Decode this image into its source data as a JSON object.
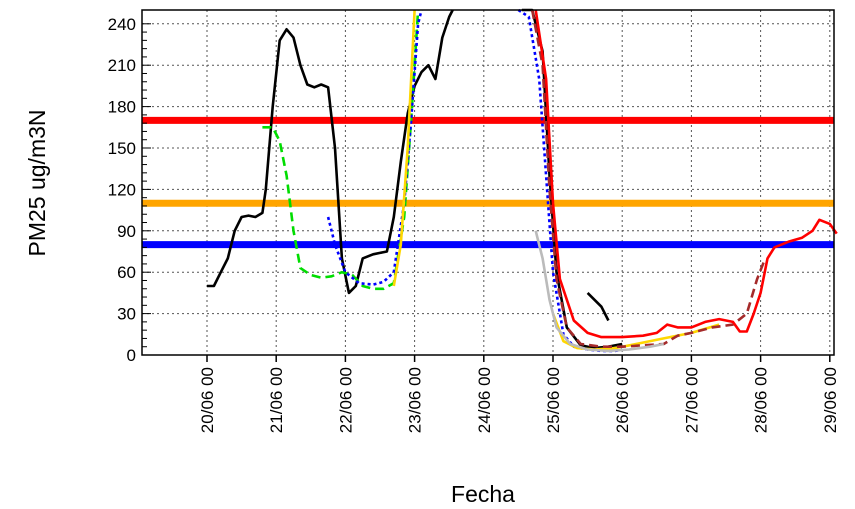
{
  "chart_data": {
    "type": "line",
    "xlabel": "Fecha",
    "ylabel": "PM25 ug/m3N",
    "ylim": [
      0,
      250
    ],
    "xlim": [
      0,
      9.1
    ],
    "grid": true,
    "y_ticks": [
      0,
      30,
      60,
      90,
      120,
      150,
      180,
      210,
      240
    ],
    "x_ticks": [
      {
        "x": 0,
        "label": "20/06 00"
      },
      {
        "x": 1,
        "label": "21/06 00"
      },
      {
        "x": 2,
        "label": "22/06 00"
      },
      {
        "x": 3,
        "label": "23/06 00"
      },
      {
        "x": 4,
        "label": "24/06 00"
      },
      {
        "x": 5,
        "label": "25/06 00"
      },
      {
        "x": 6,
        "label": "26/06 00"
      },
      {
        "x": 7,
        "label": "27/06 00"
      },
      {
        "x": 8,
        "label": "28/06 00"
      },
      {
        "x": 9,
        "label": "29/06 00"
      }
    ],
    "thresholds": [
      {
        "value": 170,
        "color": "#ff0000"
      },
      {
        "value": 110,
        "color": "#ffa500"
      },
      {
        "value": 80,
        "color": "#0000ff"
      }
    ],
    "series": [
      {
        "color": "#000000",
        "style": "solid",
        "segments": [
          [
            [
              0.0,
              50
            ],
            [
              0.1,
              50
            ],
            [
              0.2,
              60
            ],
            [
              0.3,
              70
            ],
            [
              0.4,
              90
            ],
            [
              0.5,
              100
            ],
            [
              0.6,
              101
            ],
            [
              0.7,
              100
            ],
            [
              0.8,
              103
            ],
            [
              0.85,
              120
            ],
            [
              0.95,
              180
            ],
            [
              1.05,
              228
            ],
            [
              1.15,
              236
            ],
            [
              1.25,
              230
            ],
            [
              1.35,
              210
            ],
            [
              1.45,
              196
            ],
            [
              1.55,
              194
            ],
            [
              1.65,
              196
            ],
            [
              1.75,
              194
            ],
            [
              1.85,
              150
            ],
            [
              1.95,
              70
            ],
            [
              2.05,
              45
            ],
            [
              2.15,
              50
            ],
            [
              2.25,
              70
            ],
            [
              2.4,
              73
            ],
            [
              2.5,
              74
            ],
            [
              2.6,
              75
            ],
            [
              2.7,
              100
            ],
            [
              2.8,
              140
            ],
            [
              2.9,
              175
            ],
            [
              3.0,
              195
            ],
            [
              3.1,
              205
            ],
            [
              3.2,
              210
            ],
            [
              3.3,
              200
            ],
            [
              3.4,
              230
            ],
            [
              3.5,
              245
            ],
            [
              3.55,
              250
            ]
          ],
          [
            [
              4.55,
              250
            ],
            [
              4.7,
              250
            ],
            [
              4.85,
              220
            ],
            [
              4.95,
              130
            ],
            [
              5.05,
              60
            ],
            [
              5.2,
              20
            ],
            [
              5.4,
              7
            ],
            [
              5.6,
              5
            ],
            [
              5.8,
              6
            ],
            [
              6.0,
              8
            ]
          ],
          [
            [
              5.5,
              45
            ],
            [
              5.6,
              40
            ],
            [
              5.7,
              35
            ],
            [
              5.8,
              25
            ]
          ]
        ]
      },
      {
        "color": "#00dd00",
        "style": "dashed",
        "segments": [
          [
            [
              0.8,
              165
            ],
            [
              0.95,
              165
            ],
            [
              1.05,
              155
            ],
            [
              1.15,
              130
            ],
            [
              1.25,
              90
            ],
            [
              1.35,
              63
            ],
            [
              1.5,
              58
            ],
            [
              1.65,
              56
            ],
            [
              1.8,
              57
            ],
            [
              1.95,
              60
            ],
            [
              2.1,
              58
            ],
            [
              2.25,
              50
            ],
            [
              2.4,
              48
            ],
            [
              2.55,
              48
            ],
            [
              2.7,
              52
            ],
            [
              2.85,
              100
            ],
            [
              2.95,
              170
            ],
            [
              3.05,
              250
            ]
          ]
        ]
      },
      {
        "color": "#0000ff",
        "style": "dotted",
        "segments": [
          [
            [
              1.75,
              100
            ],
            [
              1.85,
              80
            ],
            [
              2.0,
              60
            ],
            [
              2.2,
              52
            ],
            [
              2.4,
              51
            ],
            [
              2.55,
              53
            ],
            [
              2.7,
              60
            ],
            [
              2.85,
              110
            ],
            [
              2.95,
              170
            ],
            [
              3.05,
              240
            ],
            [
              3.1,
              250
            ]
          ],
          [
            [
              4.5,
              250
            ],
            [
              4.65,
              245
            ],
            [
              4.8,
              200
            ],
            [
              4.9,
              130
            ],
            [
              5.0,
              60
            ],
            [
              5.15,
              15
            ],
            [
              5.3,
              6
            ],
            [
              5.5,
              4
            ],
            [
              5.7,
              3
            ],
            [
              5.9,
              3
            ],
            [
              6.0,
              4
            ]
          ]
        ]
      },
      {
        "color": "#ffd700",
        "style": "solid",
        "segments": [
          [
            [
              2.7,
              50
            ],
            [
              2.8,
              80
            ],
            [
              2.9,
              150
            ],
            [
              3.0,
              250
            ]
          ],
          [
            [
              5.0,
              30
            ],
            [
              5.15,
              10
            ],
            [
              5.35,
              5
            ],
            [
              5.6,
              4
            ],
            [
              5.9,
              5
            ],
            [
              6.2,
              8
            ],
            [
              6.6,
              12
            ],
            [
              7.0,
              16
            ],
            [
              7.4,
              22
            ]
          ]
        ]
      },
      {
        "color": "#a52a2a",
        "style": "dashed",
        "segments": [
          [
            [
              4.7,
              250
            ],
            [
              4.85,
              210
            ],
            [
              4.95,
              120
            ],
            [
              5.05,
              55
            ],
            [
              5.2,
              20
            ],
            [
              5.4,
              8
            ],
            [
              5.7,
              6
            ],
            [
              6.0,
              6
            ],
            [
              6.3,
              7
            ],
            [
              6.6,
              8
            ],
            [
              6.8,
              14
            ],
            [
              7.0,
              16
            ],
            [
              7.3,
              20
            ],
            [
              7.6,
              22
            ],
            [
              7.8,
              30
            ],
            [
              7.95,
              55
            ],
            [
              8.05,
              68
            ]
          ]
        ]
      },
      {
        "color": "#bbbbbb",
        "style": "solid",
        "segments": [
          [
            [
              4.75,
              90
            ],
            [
              4.85,
              70
            ],
            [
              4.95,
              40
            ],
            [
              5.05,
              20
            ],
            [
              5.25,
              8
            ],
            [
              5.5,
              4
            ],
            [
              5.8,
              3
            ],
            [
              6.1,
              4
            ],
            [
              6.4,
              6
            ],
            [
              6.6,
              8
            ]
          ]
        ]
      },
      {
        "color": "#ff0000",
        "style": "solid",
        "segments": [
          [
            [
              4.75,
              250
            ],
            [
              4.9,
              200
            ],
            [
              5.0,
              110
            ],
            [
              5.1,
              55
            ],
            [
              5.3,
              25
            ],
            [
              5.5,
              16
            ],
            [
              5.7,
              13
            ],
            [
              6.0,
              13
            ],
            [
              6.3,
              14
            ],
            [
              6.5,
              16
            ],
            [
              6.65,
              22
            ],
            [
              6.8,
              20
            ],
            [
              7.0,
              20
            ],
            [
              7.2,
              24
            ],
            [
              7.4,
              26
            ],
            [
              7.6,
              24
            ],
            [
              7.7,
              17
            ],
            [
              7.8,
              17
            ],
            [
              7.9,
              30
            ],
            [
              8.0,
              45
            ],
            [
              8.1,
              70
            ],
            [
              8.2,
              78
            ],
            [
              8.4,
              82
            ],
            [
              8.6,
              85
            ],
            [
              8.75,
              90
            ],
            [
              8.85,
              98
            ],
            [
              9.0,
              95
            ],
            [
              9.1,
              88
            ]
          ]
        ]
      }
    ]
  }
}
